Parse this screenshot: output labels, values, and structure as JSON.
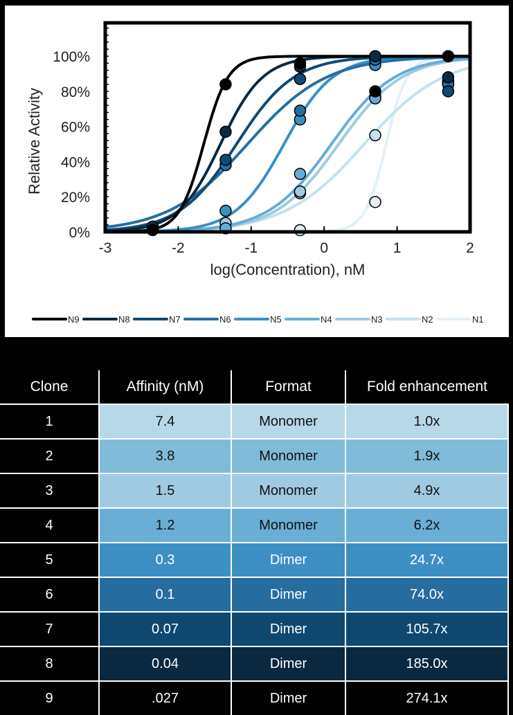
{
  "chart_data": {
    "type": "line",
    "xlabel": "log(Concentration), nM",
    "ylabel": "Relative Activity",
    "xlim": [
      -3,
      2
    ],
    "ylim": [
      0,
      119
    ],
    "xticks": [
      "-3",
      "-2",
      "-1",
      "0",
      "1",
      "2"
    ],
    "xtick_values": [
      -3,
      -2,
      -1,
      0,
      1,
      2
    ],
    "yticks": [
      "0%",
      "20%",
      "40%",
      "60%",
      "80%",
      "100%"
    ],
    "ytick_values": [
      0,
      20,
      40,
      60,
      80,
      100
    ],
    "legend_position": "bottom",
    "series": [
      {
        "name": "N9",
        "color": "#000000",
        "ec50": -1.65,
        "hill": 2.6,
        "points": [
          [
            -2.35,
            1
          ],
          [
            -1.35,
            84
          ],
          [
            -0.33,
            96
          ],
          [
            0.7,
            80
          ],
          [
            1.7,
            100
          ]
        ]
      },
      {
        "name": "N8",
        "color": "#0a2a42",
        "ec50": -1.42,
        "hill": 1.5,
        "points": [
          [
            -2.35,
            3
          ],
          [
            -1.35,
            57
          ],
          [
            -0.33,
            94
          ],
          [
            0.7,
            100
          ],
          [
            1.7,
            88
          ]
        ]
      },
      {
        "name": "N7",
        "color": "#0f4a73",
        "ec50": -1.2,
        "hill": 1.1,
        "points": [
          [
            -2.35,
            2
          ],
          [
            -1.35,
            41
          ],
          [
            -0.33,
            87
          ],
          [
            0.7,
            100
          ],
          [
            1.7,
            80
          ]
        ]
      },
      {
        "name": "N6",
        "color": "#256ea3",
        "ec50": -1.05,
        "hill": 0.8,
        "points": [
          [
            -1.35,
            38
          ],
          [
            -0.33,
            69
          ],
          [
            0.7,
            98
          ],
          [
            1.7,
            84
          ]
        ]
      },
      {
        "name": "N5",
        "color": "#3a8fc4",
        "ec50": -0.55,
        "hill": 1.3,
        "points": [
          [
            -1.35,
            12
          ],
          [
            -0.33,
            64
          ],
          [
            0.7,
            95
          ],
          [
            1.7,
            85
          ]
        ]
      },
      {
        "name": "N4",
        "color": "#68acd5",
        "ec50": 0.1,
        "hill": 1.0,
        "points": [
          [
            -1.35,
            2
          ],
          [
            -0.33,
            33
          ],
          [
            0.7,
            76
          ],
          [
            1.7,
            85
          ]
        ]
      },
      {
        "name": "N3",
        "color": "#9ecae2",
        "ec50": 0.2,
        "hill": 1.0,
        "points": [
          [
            -1.35,
            5
          ],
          [
            -0.33,
            23
          ],
          [
            0.7,
            77
          ],
          [
            1.7,
            86
          ]
        ]
      },
      {
        "name": "N2",
        "color": "#c4e2f0",
        "ec50": 0.55,
        "hill": 0.8,
        "points": [
          [
            -0.33,
            22
          ],
          [
            0.7,
            55
          ],
          [
            1.7,
            84
          ]
        ]
      },
      {
        "name": "N1",
        "color": "#e3f0f8",
        "ec50": 0.85,
        "hill": 3.0,
        "points": [
          [
            -0.33,
            1
          ],
          [
            0.7,
            17
          ],
          [
            1.7,
            100
          ]
        ]
      }
    ]
  },
  "table": {
    "headers": [
      "Clone",
      "Affinity (nM)",
      "Format",
      "Fold enhancement"
    ],
    "rows": [
      {
        "clone": "1",
        "affinity": "7.4",
        "format": "Monomer",
        "fold": "1.0x",
        "color": "#b6d8e8"
      },
      {
        "clone": "2",
        "affinity": "3.8",
        "format": "Monomer",
        "fold": "1.9x",
        "color": "#80bbd9"
      },
      {
        "clone": "3",
        "affinity": "1.5",
        "format": "Monomer",
        "fold": "4.9x",
        "color": "#a0cae2"
      },
      {
        "clone": "4",
        "affinity": "1.2",
        "format": "Monomer",
        "fold": "6.2x",
        "color": "#6aaed6"
      },
      {
        "clone": "5",
        "affinity": "0.3",
        "format": "Dimer",
        "fold": "24.7x",
        "color": "#3d8fc3"
      },
      {
        "clone": "6",
        "affinity": "0.1",
        "format": "Dimer",
        "fold": "74.0x",
        "color": "#276c9f"
      },
      {
        "clone": "7",
        "affinity": "0.07",
        "format": "Dimer",
        "fold": "105.7x",
        "color": "#0e4870"
      },
      {
        "clone": "8",
        "affinity": "0.04",
        "format": "Dimer",
        "fold": "185.0x",
        "color": "#0a2940"
      },
      {
        "clone": "9",
        "affinity": ".027",
        "format": "Dimer",
        "fold": "274.1x",
        "color": "#000000"
      }
    ]
  }
}
